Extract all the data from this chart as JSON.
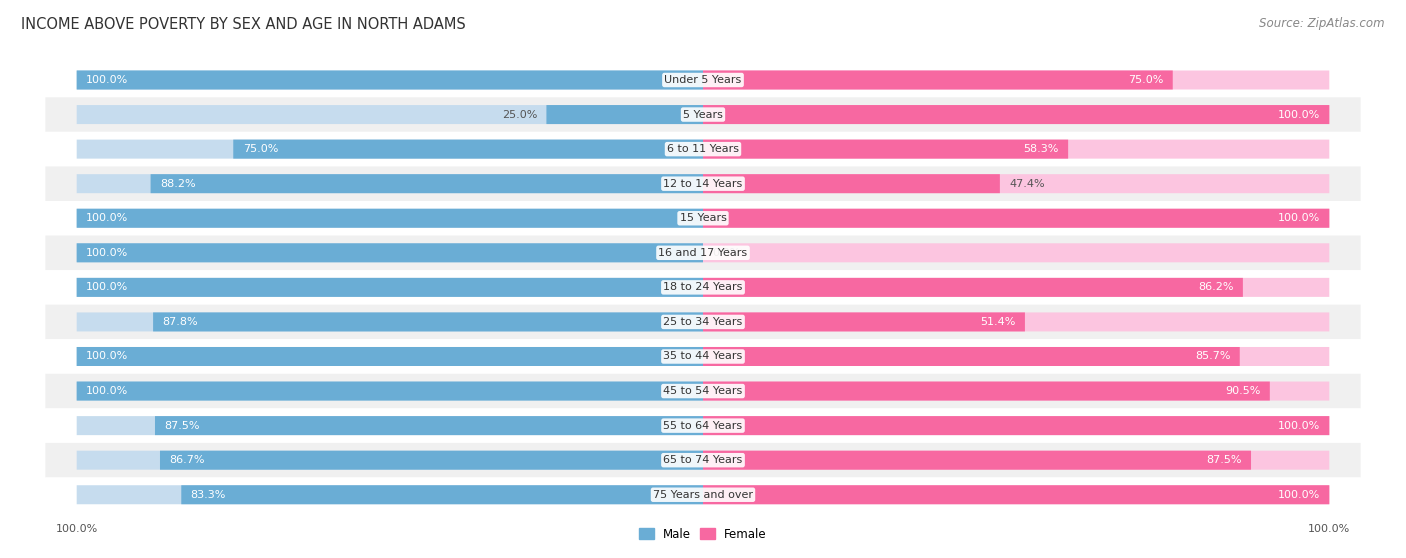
{
  "title": "INCOME ABOVE POVERTY BY SEX AND AGE IN NORTH ADAMS",
  "source": "Source: ZipAtlas.com",
  "categories": [
    "Under 5 Years",
    "5 Years",
    "6 to 11 Years",
    "12 to 14 Years",
    "15 Years",
    "16 and 17 Years",
    "18 to 24 Years",
    "25 to 34 Years",
    "35 to 44 Years",
    "45 to 54 Years",
    "55 to 64 Years",
    "65 to 74 Years",
    "75 Years and over"
  ],
  "male": [
    100.0,
    25.0,
    75.0,
    88.2,
    100.0,
    100.0,
    100.0,
    87.8,
    100.0,
    100.0,
    87.5,
    86.7,
    83.3
  ],
  "female": [
    75.0,
    100.0,
    58.3,
    47.4,
    100.0,
    0.0,
    86.2,
    51.4,
    85.7,
    90.5,
    100.0,
    87.5,
    100.0
  ],
  "male_color": "#6aadd5",
  "female_color": "#f768a1",
  "male_color_light": "#c6dcee",
  "female_color_light": "#fcc5e0",
  "male_label": "Male",
  "female_label": "Female",
  "bg_row_light": "#f0f0f0",
  "bg_row_dark": "#e0e0e0",
  "title_fontsize": 10.5,
  "source_fontsize": 8.5,
  "label_fontsize": 8,
  "tick_fontsize": 8,
  "max_val": 100.0
}
